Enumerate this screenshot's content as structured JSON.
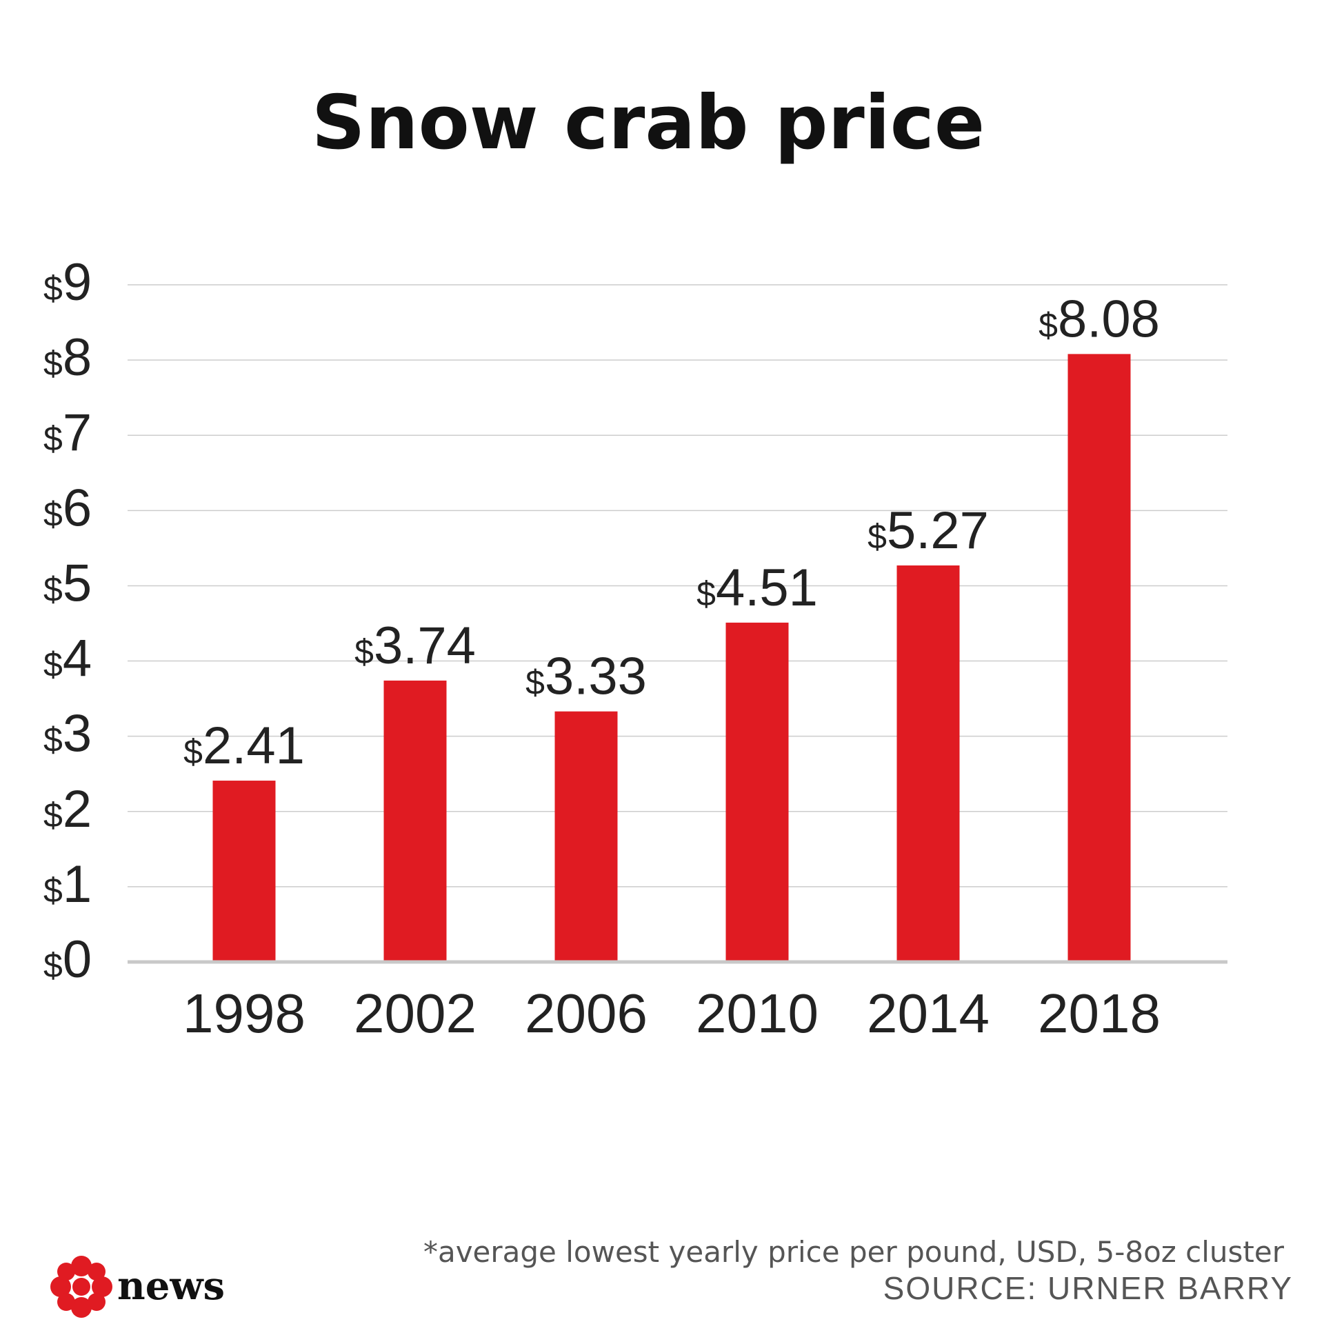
{
  "chart_data": {
    "type": "bar",
    "title": "Snow crab price",
    "categories": [
      "1998",
      "2002",
      "2006",
      "2010",
      "2014",
      "2018"
    ],
    "values": [
      2.41,
      3.74,
      3.33,
      4.51,
      5.27,
      8.08
    ],
    "value_labels": [
      "2.41",
      "3.74",
      "3.33",
      "4.51",
      "5.27",
      "8.08"
    ],
    "currency_symbol": "$",
    "ylim": [
      0,
      9
    ],
    "yticks": [
      0,
      1,
      2,
      3,
      4,
      5,
      6,
      7,
      8,
      9
    ],
    "ytick_labels": [
      "0",
      "1",
      "2",
      "3",
      "4",
      "5",
      "6",
      "7",
      "8",
      "9"
    ],
    "grid": true,
    "bar_color": "#e01b22",
    "gridline_color": "#cccccc"
  },
  "footer": {
    "note": "*average lowest yearly price per pound, USD, 5-8oz cluster",
    "source": "SOURCE: URNER BARRY",
    "logo_text": "news",
    "logo_color": "#e01b22"
  }
}
